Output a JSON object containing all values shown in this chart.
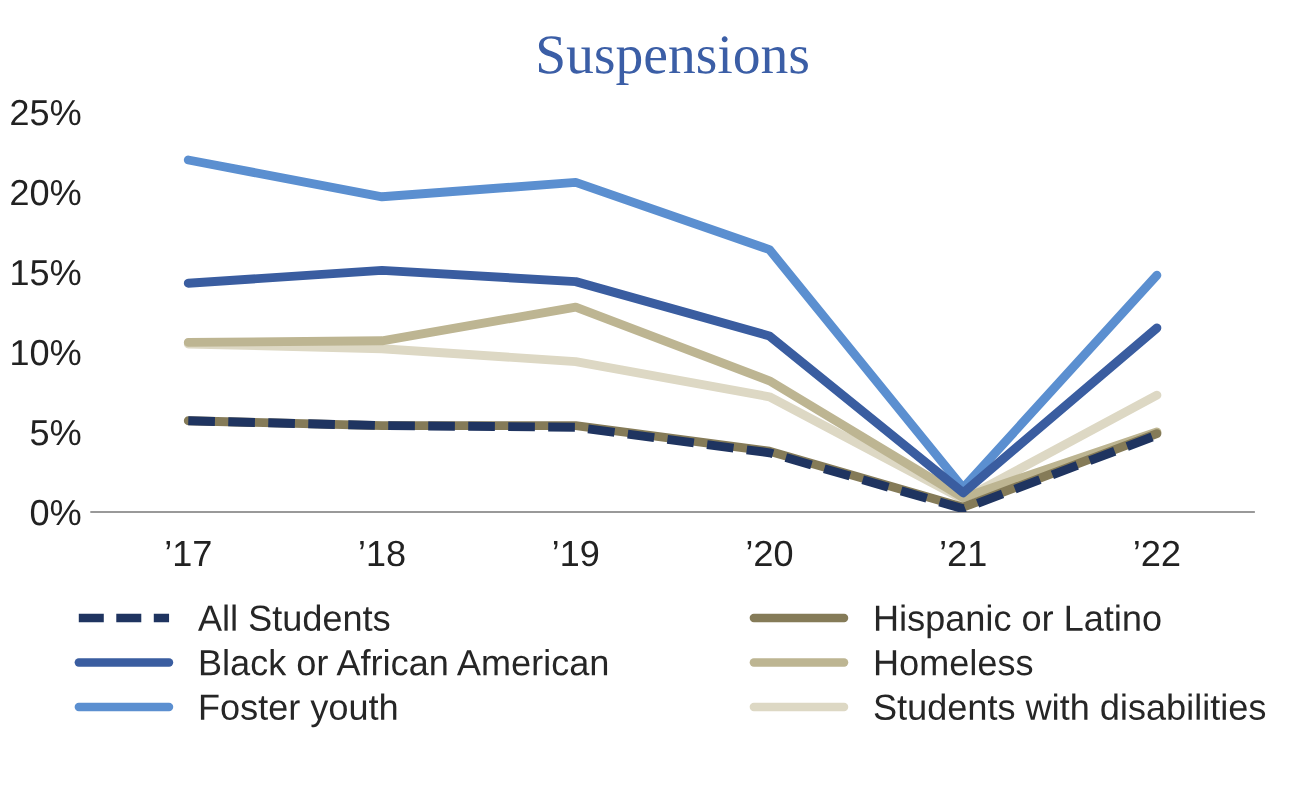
{
  "chart_data": {
    "type": "line",
    "title": "Suspensions",
    "categories": [
      "’17",
      "’18",
      "’19",
      "’20",
      "’21",
      "’22"
    ],
    "series": [
      {
        "name": "All Students",
        "color": "#1f3460",
        "line_style": "dashed",
        "values": [
          5.7,
          5.4,
          5.3,
          3.7,
          0.2,
          4.8
        ]
      },
      {
        "name": "Black or African American",
        "color": "#3a5da0",
        "values": [
          14.3,
          15.1,
          14.4,
          11.0,
          1.2,
          11.5
        ]
      },
      {
        "name": "Foster youth",
        "color": "#5b8fd0",
        "values": [
          22.0,
          19.7,
          20.6,
          16.4,
          1.5,
          14.8
        ]
      },
      {
        "name": "Hispanic or Latino",
        "color": "#857b58",
        "values": [
          5.7,
          5.4,
          5.4,
          3.8,
          0.3,
          4.9
        ]
      },
      {
        "name": "Homeless",
        "color": "#bdb592",
        "values": [
          10.6,
          10.7,
          12.8,
          8.2,
          0.9,
          5.0
        ]
      },
      {
        "name": "Students with disabilities",
        "color": "#ddd8c4",
        "values": [
          10.5,
          10.2,
          9.4,
          7.2,
          0.8,
          7.3
        ]
      }
    ],
    "ylim": [
      0,
      25
    ],
    "yticks": [
      {
        "value": 0,
        "label": "0%"
      },
      {
        "value": 5,
        "label": "5%"
      },
      {
        "value": 10,
        "label": "10%"
      },
      {
        "value": 15,
        "label": "15%"
      },
      {
        "value": 20,
        "label": "20%"
      },
      {
        "value": 25,
        "label": "25%"
      }
    ],
    "grid": false,
    "legend": "bottom",
    "line_style": "solid"
  }
}
